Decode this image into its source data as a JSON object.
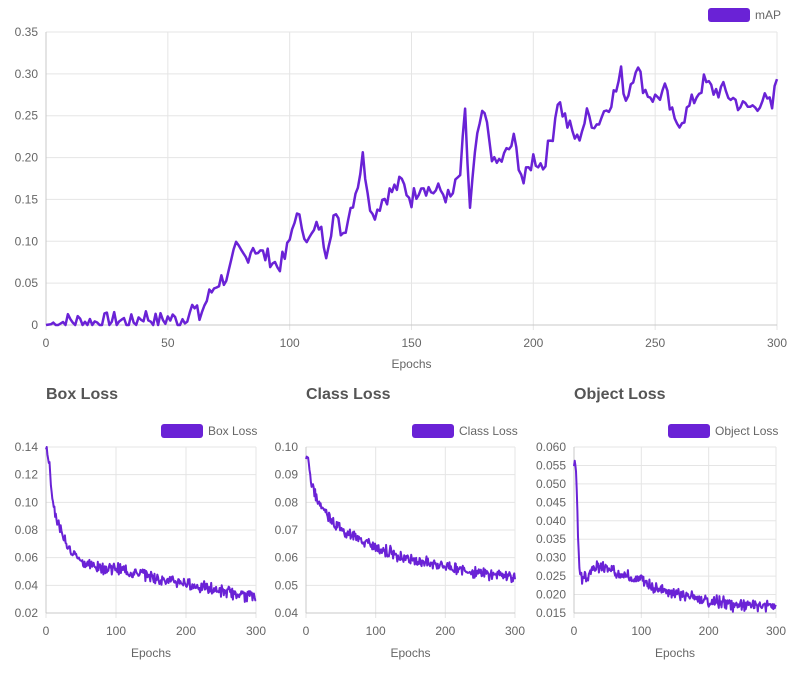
{
  "colors": {
    "series": "#6a22d6",
    "grid": "#e5e5e5",
    "axis": "#c8c8c8"
  },
  "chart_data": [
    {
      "id": "map",
      "type": "line",
      "title": "",
      "legend": "mAP",
      "xlabel": "Epochs",
      "ylabel": "",
      "xlim": [
        0,
        300
      ],
      "ylim": [
        0,
        0.35
      ],
      "xticks": [
        0,
        50,
        100,
        150,
        200,
        250,
        300
      ],
      "yticks": [
        0,
        0.05,
        0.1,
        0.15,
        0.2,
        0.25,
        0.3,
        0.35
      ],
      "ytick_labels": [
        "0",
        "0.05",
        "0.10",
        "0.15",
        "0.20",
        "0.25",
        "0.30",
        "0.35"
      ],
      "xtick_labels": [
        "0",
        "50",
        "100",
        "150",
        "200",
        "250",
        "300"
      ],
      "x": [
        0,
        10,
        20,
        30,
        35,
        40,
        45,
        50,
        55,
        60,
        63,
        66,
        70,
        75,
        78,
        82,
        85,
        88,
        92,
        95,
        98,
        100,
        102,
        105,
        108,
        112,
        115,
        118,
        122,
        125,
        128,
        130,
        134,
        138,
        142,
        146,
        150,
        154,
        158,
        162,
        166,
        170,
        172,
        174,
        176,
        178,
        180,
        184,
        188,
        192,
        196,
        200,
        204,
        208,
        210,
        214,
        218,
        222,
        226,
        230,
        234,
        236,
        238,
        242,
        246,
        250,
        254,
        258,
        262,
        266,
        270,
        274,
        278,
        282,
        286,
        290,
        294,
        298,
        300
      ],
      "series": [
        {
          "name": "mAP",
          "values": [
            0.0,
            0.005,
            0.003,
            0.006,
            0.002,
            0.012,
            0.004,
            0.008,
            0.005,
            0.02,
            0.01,
            0.03,
            0.05,
            0.06,
            0.09,
            0.08,
            0.095,
            0.085,
            0.08,
            0.07,
            0.08,
            0.1,
            0.13,
            0.12,
            0.1,
            0.12,
            0.09,
            0.13,
            0.11,
            0.14,
            0.17,
            0.2,
            0.13,
            0.15,
            0.16,
            0.17,
            0.15,
            0.17,
            0.16,
            0.16,
            0.15,
            0.18,
            0.25,
            0.14,
            0.2,
            0.24,
            0.25,
            0.19,
            0.2,
            0.22,
            0.17,
            0.2,
            0.19,
            0.23,
            0.27,
            0.24,
            0.22,
            0.25,
            0.24,
            0.26,
            0.28,
            0.3,
            0.27,
            0.31,
            0.28,
            0.27,
            0.28,
            0.24,
            0.25,
            0.27,
            0.29,
            0.28,
            0.28,
            0.27,
            0.26,
            0.26,
            0.27,
            0.26,
            0.295
          ]
        }
      ]
    },
    {
      "id": "box",
      "type": "line",
      "title": "Box Loss",
      "legend": "Box Loss",
      "xlabel": "Epochs",
      "ylabel": "",
      "xlim": [
        0,
        300
      ],
      "ylim": [
        0.02,
        0.14
      ],
      "xticks": [
        0,
        100,
        200,
        300
      ],
      "xtick_labels": [
        "0",
        "100",
        "200",
        "300"
      ],
      "yticks": [
        0.02,
        0.04,
        0.06,
        0.08,
        0.1,
        0.12,
        0.14
      ],
      "ytick_labels": [
        "0.02",
        "0.04",
        "0.06",
        "0.08",
        "0.10",
        "0.12",
        "0.14"
      ],
      "x": [
        0,
        3,
        6,
        10,
        15,
        20,
        30,
        40,
        50,
        60,
        80,
        100,
        120,
        140,
        160,
        180,
        200,
        220,
        240,
        260,
        280,
        300
      ],
      "series": [
        {
          "name": "Box Loss",
          "values": [
            0.14,
            0.135,
            0.12,
            0.1,
            0.09,
            0.08,
            0.07,
            0.063,
            0.058,
            0.055,
            0.053,
            0.052,
            0.05,
            0.048,
            0.045,
            0.043,
            0.041,
            0.039,
            0.037,
            0.035,
            0.033,
            0.032
          ]
        }
      ]
    },
    {
      "id": "class",
      "type": "line",
      "title": "Class Loss",
      "legend": "Class Loss",
      "xlabel": "Epochs",
      "ylabel": "",
      "xlim": [
        0,
        300
      ],
      "ylim": [
        0.04,
        0.1
      ],
      "xticks": [
        0,
        100,
        200,
        300
      ],
      "xtick_labels": [
        "0",
        "100",
        "200",
        "300"
      ],
      "yticks": [
        0.04,
        0.05,
        0.06,
        0.07,
        0.08,
        0.09,
        0.1
      ],
      "ytick_labels": [
        "0.04",
        "0.05",
        "0.06",
        "0.07",
        "0.08",
        "0.09",
        "0.10"
      ],
      "x": [
        0,
        3,
        6,
        10,
        15,
        20,
        30,
        40,
        50,
        60,
        80,
        100,
        120,
        140,
        160,
        180,
        200,
        220,
        240,
        260,
        280,
        300
      ],
      "series": [
        {
          "name": "Class Loss",
          "values": [
            0.095,
            0.097,
            0.09,
            0.085,
            0.081,
            0.079,
            0.076,
            0.073,
            0.07,
            0.069,
            0.066,
            0.064,
            0.062,
            0.06,
            0.059,
            0.058,
            0.057,
            0.056,
            0.055,
            0.054,
            0.054,
            0.053
          ]
        }
      ]
    },
    {
      "id": "object",
      "type": "line",
      "title": "Object Loss",
      "legend": "Object Loss",
      "xlabel": "Epochs",
      "ylabel": "",
      "xlim": [
        0,
        300
      ],
      "ylim": [
        0.015,
        0.06
      ],
      "xticks": [
        0,
        100,
        200,
        300
      ],
      "xtick_labels": [
        "0",
        "100",
        "200",
        "300"
      ],
      "yticks": [
        0.015,
        0.02,
        0.025,
        0.03,
        0.035,
        0.04,
        0.045,
        0.05,
        0.055,
        0.06
      ],
      "ytick_labels": [
        "0.015",
        "0.020",
        "0.025",
        "0.030",
        "0.035",
        "0.040",
        "0.045",
        "0.050",
        "0.055",
        "0.060"
      ],
      "x": [
        0,
        2,
        4,
        6,
        8,
        12,
        20,
        30,
        40,
        50,
        60,
        80,
        100,
        120,
        140,
        160,
        180,
        200,
        220,
        240,
        260,
        280,
        300
      ],
      "series": [
        {
          "name": "Object Loss",
          "values": [
            0.055,
            0.056,
            0.05,
            0.035,
            0.026,
            0.024,
            0.025,
            0.027,
            0.028,
            0.027,
            0.026,
            0.025,
            0.024,
            0.022,
            0.021,
            0.02,
            0.019,
            0.018,
            0.018,
            0.017,
            0.017,
            0.017,
            0.017
          ]
        }
      ]
    }
  ]
}
